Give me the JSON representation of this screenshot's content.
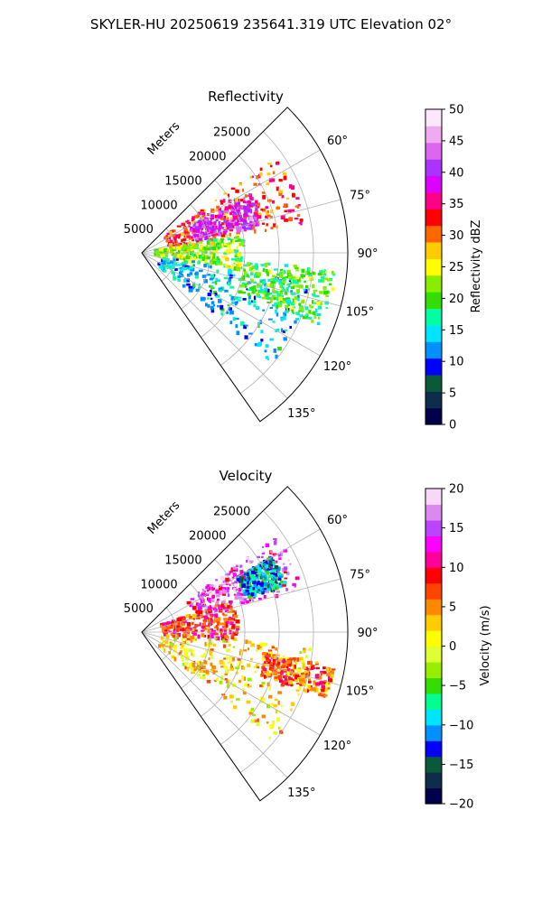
{
  "figure": {
    "title": "SKYLER-HU  20250619  235641.319 UTC Elevation 02°"
  },
  "chart_data": [
    {
      "type": "heatmap",
      "projection": "polar-sector",
      "title": "Reflectivity",
      "radial_label": "Meters",
      "radial_ticks": [
        5000,
        10000,
        15000,
        20000,
        25000
      ],
      "radial_range": [
        0,
        30000
      ],
      "azimuth_range_deg": [
        45,
        145
      ],
      "azimuth_ticks": [
        "60°",
        "75°",
        "90°",
        "105°",
        "120°",
        "135°"
      ],
      "azimuth_tick_values": [
        60,
        75,
        90,
        105,
        120,
        135
      ],
      "colorbar": {
        "label": "Reflectivity dBZ",
        "range": [
          0,
          50
        ],
        "ticks": [
          "0",
          "5",
          "10",
          "15",
          "20",
          "25",
          "30",
          "35",
          "40",
          "45",
          "50"
        ],
        "colors": [
          "#00004a",
          "#0d2d4a",
          "#0a5a3a",
          "#0000ff",
          "#0090ff",
          "#00e5ff",
          "#00ffa0",
          "#33dd00",
          "#88ee00",
          "#ffff00",
          "#ffcc00",
          "#ff6600",
          "#ff0000",
          "#ff0088",
          "#dd00ff",
          "#aa33ff",
          "#dd66ee",
          "#f0aaf0",
          "#fce8fc"
        ]
      },
      "echo_regions": [
        {
          "az": [
            55,
            80
          ],
          "r": [
            4000,
            24000
          ],
          "level": 32
        },
        {
          "az": [
            62,
            78
          ],
          "r": [
            8000,
            18000
          ],
          "level": 40
        },
        {
          "az": [
            80,
            100
          ],
          "r": [
            2000,
            15000
          ],
          "level": 22
        },
        {
          "az": [
            100,
            130
          ],
          "r": [
            3000,
            25000
          ],
          "level": 14
        },
        {
          "az": [
            95,
            112
          ],
          "r": [
            15000,
            28500
          ],
          "level": 20
        }
      ]
    },
    {
      "type": "heatmap",
      "projection": "polar-sector",
      "title": "Velocity",
      "radial_label": "Meters",
      "radial_ticks": [
        5000,
        10000,
        15000,
        20000,
        25000
      ],
      "radial_range": [
        0,
        30000
      ],
      "azimuth_range_deg": [
        45,
        145
      ],
      "azimuth_ticks": [
        "60°",
        "75°",
        "90°",
        "105°",
        "120°",
        "135°"
      ],
      "azimuth_tick_values": [
        60,
        75,
        90,
        105,
        120,
        135
      ],
      "colorbar": {
        "label": "Velocity (m/s)",
        "range": [
          -20,
          20
        ],
        "ticks": [
          "−20",
          "−15",
          "−10",
          "−5",
          "0",
          "5",
          "10",
          "15",
          "20"
        ],
        "colors": [
          "#00004a",
          "#0d2d4a",
          "#0a5a3a",
          "#0000ff",
          "#0090ff",
          "#00e5ff",
          "#00ff90",
          "#33dd00",
          "#99ee00",
          "#ddff33",
          "#ffff00",
          "#ffcc00",
          "#ff8800",
          "#ff4400",
          "#ff0000",
          "#ff0099",
          "#ff00ff",
          "#bb44ff",
          "#dd88ee",
          "#f8d8f8"
        ]
      },
      "echo_regions": [
        {
          "az": [
            55,
            75
          ],
          "r": [
            8000,
            24000
          ],
          "level": 14
        },
        {
          "az": [
            70,
            95
          ],
          "r": [
            3000,
            14000
          ],
          "level": 8
        },
        {
          "az": [
            60,
            72
          ],
          "r": [
            16000,
            22000
          ],
          "level": -10
        },
        {
          "az": [
            95,
            130
          ],
          "r": [
            3000,
            25000
          ],
          "level": 2
        },
        {
          "az": [
            100,
            110
          ],
          "r": [
            18000,
            28500
          ],
          "level": 6
        }
      ]
    }
  ]
}
